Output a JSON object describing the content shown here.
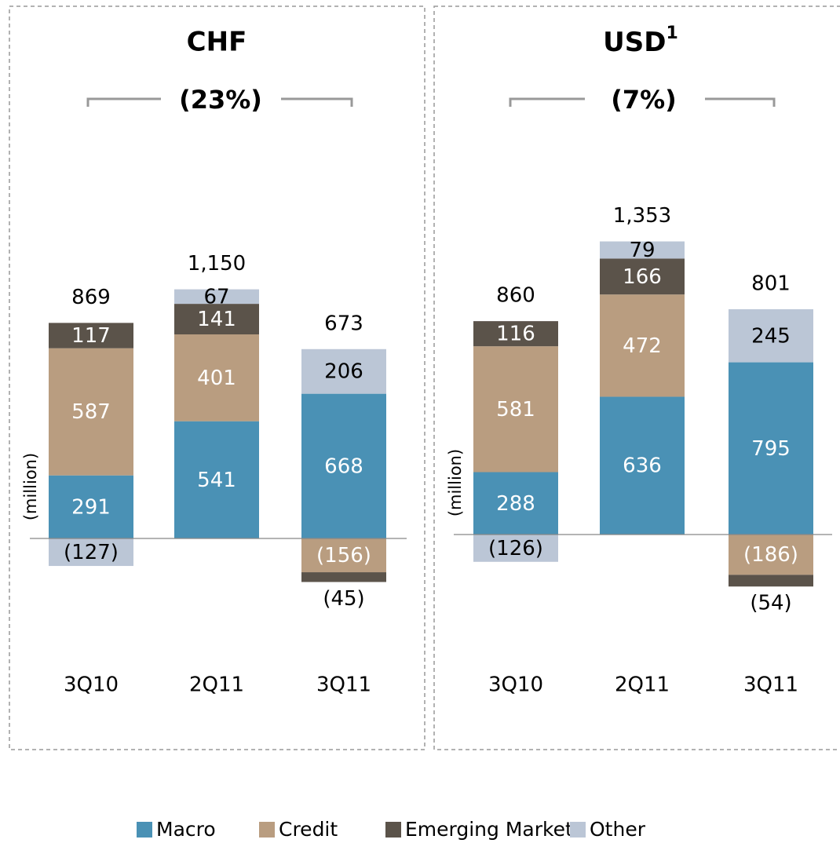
{
  "chart_data": [
    {
      "type": "bar",
      "stacked": true,
      "title": "CHF",
      "subtitle": "(23%)",
      "y_label": "(million)",
      "categories": [
        "3Q10",
        "2Q11",
        "3Q11"
      ],
      "series": [
        {
          "name": "Macro",
          "color": "#4a91b5",
          "values": [
            291,
            541,
            668
          ]
        },
        {
          "name": "Credit",
          "color": "#b99d80",
          "values": [
            587,
            401,
            -156
          ],
          "value_labels": [
            "587",
            "401",
            "(156)"
          ]
        },
        {
          "name": "Emerging Markets",
          "color": "#5b534a",
          "values": [
            117,
            141,
            -45
          ],
          "value_labels": [
            "117",
            "141",
            "(45)"
          ]
        },
        {
          "name": "Other",
          "color": "#bbc6d6",
          "values": [
            -127,
            67,
            206
          ],
          "value_labels": [
            "(127)",
            "67",
            "206"
          ]
        }
      ],
      "totals": [
        869,
        1150,
        673
      ],
      "total_labels": [
        "869",
        "1,150",
        "673"
      ]
    },
    {
      "type": "bar",
      "stacked": true,
      "title": "USD",
      "title_superscript": "1",
      "subtitle": "(7%)",
      "y_label": "(million)",
      "categories": [
        "3Q10",
        "2Q11",
        "3Q11"
      ],
      "series": [
        {
          "color": "#4a91b5",
          "values": [
            288,
            636,
            795
          ]
        },
        {
          "color": "#b99d80",
          "values": [
            581,
            472,
            -186
          ],
          "value_labels": [
            "581",
            "472",
            "(186)"
          ]
        },
        {
          "color": "#5b534a",
          "values": [
            116,
            166,
            -54
          ],
          "value_labels": [
            "116",
            "166",
            "(54)"
          ]
        },
        {
          "color": "#bbc6d6",
          "values": [
            -126,
            79,
            245
          ],
          "value_labels": [
            "(126)",
            "79",
            "245"
          ]
        }
      ],
      "totals": [
        860,
        1353,
        801
      ],
      "total_labels": [
        "860",
        "1,353",
        "801"
      ]
    }
  ]
}
